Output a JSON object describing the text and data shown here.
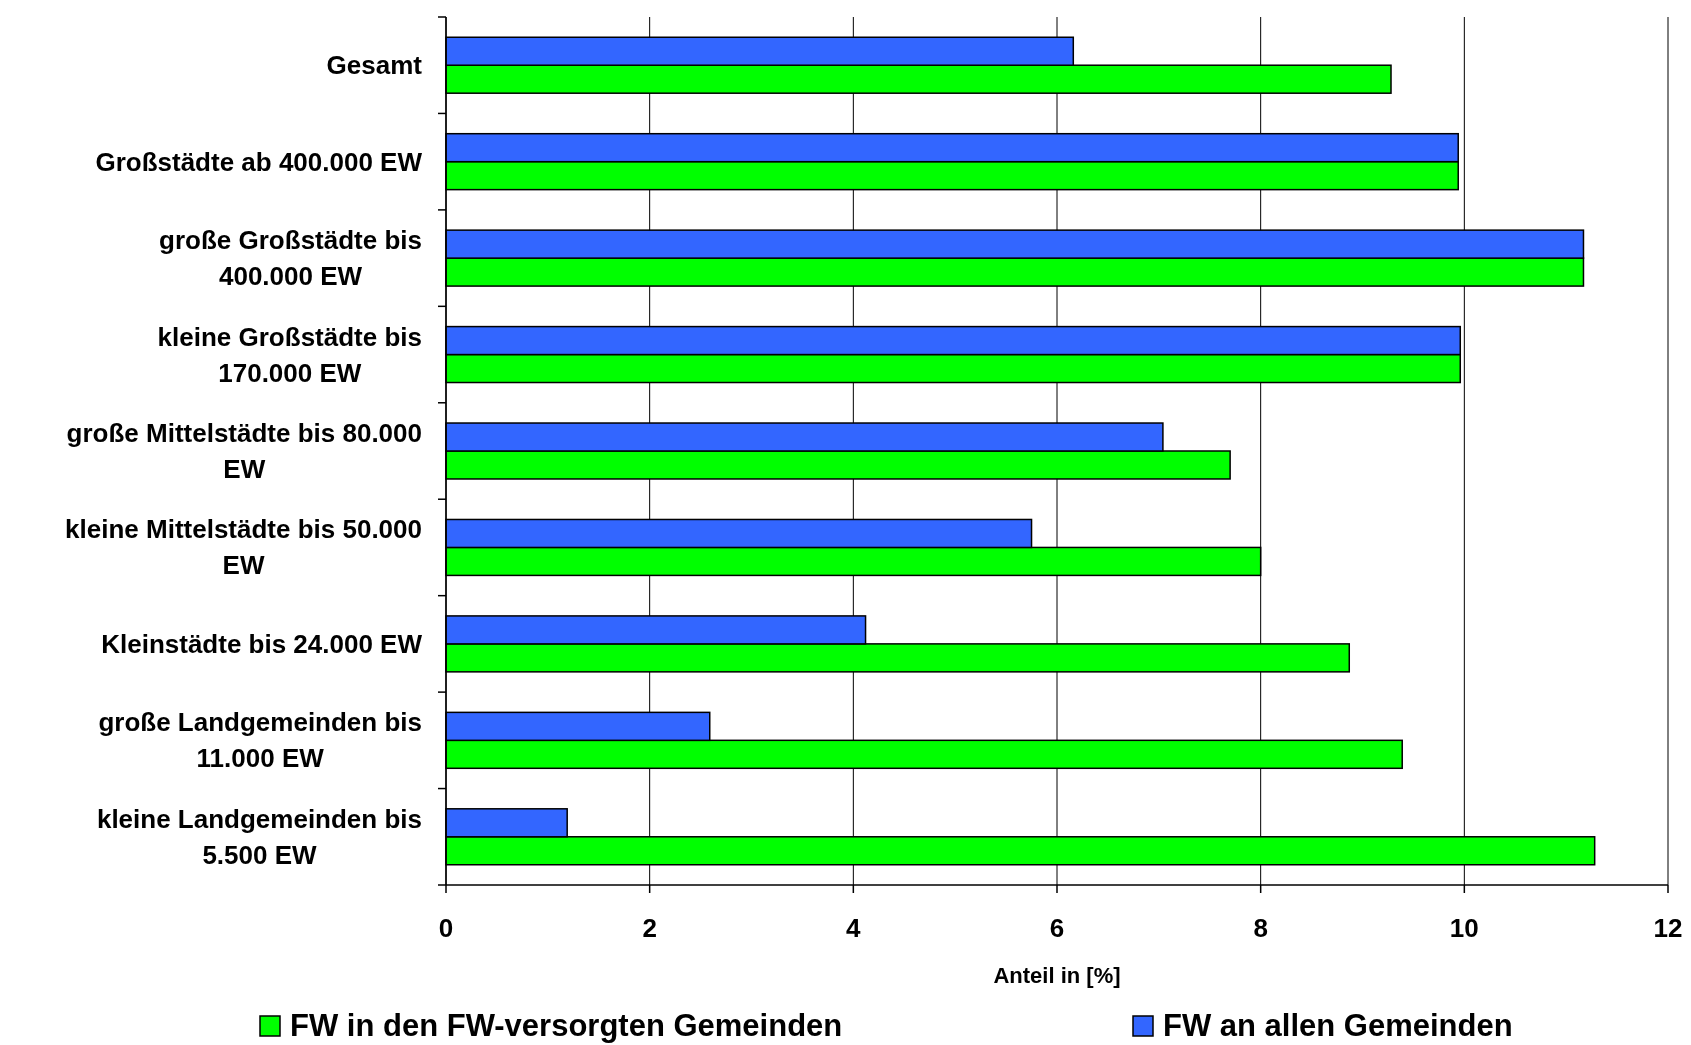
{
  "chart_data": {
    "type": "bar",
    "orientation": "horizontal",
    "xlabel": "Anteil in [%]",
    "categories": [
      "Gesamt",
      "Großstädte ab 400.000 EW",
      "große Großstädte bis 400.000 EW",
      "kleine Großstädte bis 170.000 EW",
      "große Mittelstädte bis 80.000 EW",
      "kleine Mittelstädte bis 50.000 EW",
      "Kleinstädte bis 24.000 EW",
      "große Landgemeinden bis 11.000 EW",
      "kleine Landgemeinden bis 5.500 EW"
    ],
    "series": [
      {
        "name": "FW in den FW-versorgten Gemeinden",
        "color": "#00ff00",
        "values": [
          9.28,
          9.94,
          11.17,
          9.96,
          7.7,
          8.0,
          8.87,
          9.39,
          11.28
        ]
      },
      {
        "name": "FW an allen Gemeinden",
        "color": "#3366ff",
        "values": [
          6.16,
          9.94,
          11.17,
          9.96,
          7.04,
          5.75,
          4.12,
          2.59,
          1.19
        ]
      }
    ],
    "xlim": [
      0,
      12
    ],
    "xticks": [
      0,
      2,
      4,
      6,
      8,
      10,
      12
    ],
    "grid": "x",
    "legend": "bottom"
  }
}
